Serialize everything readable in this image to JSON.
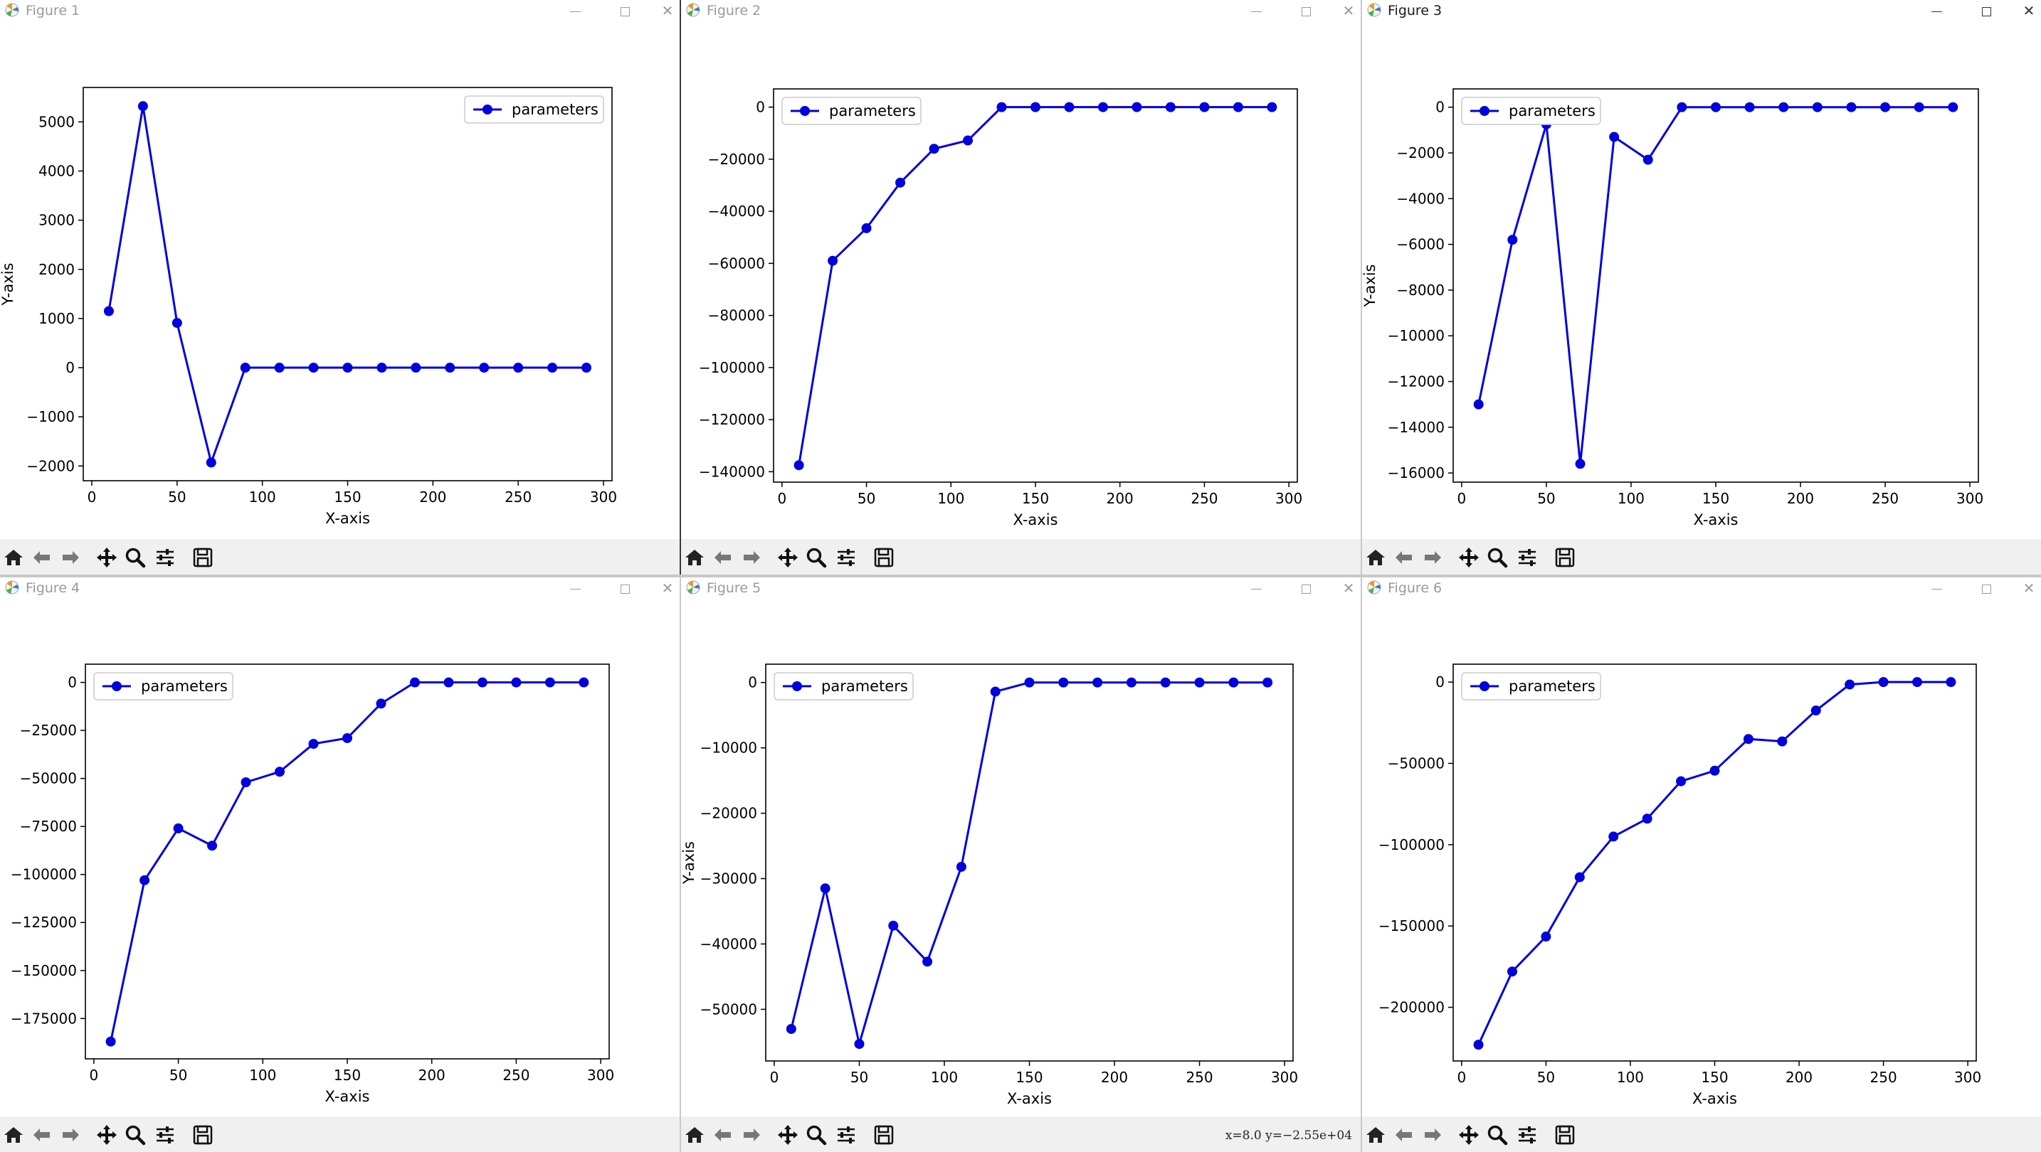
{
  "theme": {
    "line_color": "#0000dd",
    "active_title_color": "#1a1a1a",
    "inactive_title_color": "#9a9a9a",
    "toolbar_bg": "#f0f0f0"
  },
  "toolbar_buttons": [
    "home-icon",
    "back-icon",
    "forward-icon",
    "pan-icon",
    "zoom-icon",
    "configure-subplots-icon",
    "save-icon"
  ],
  "windows": [
    {
      "title": "Figure 1",
      "coord_text": "",
      "chart_data": {
        "type": "line",
        "xlabel": "X-axis",
        "ylabel": "Y-axis",
        "legend": "parameters",
        "legend_loc": "upper right",
        "xlim": [
          -5,
          305
        ],
        "ylim": [
          -2300,
          5700
        ],
        "xticks": [
          0,
          50,
          100,
          150,
          200,
          250,
          300
        ],
        "yticks": [
          -2000,
          -1000,
          0,
          1000,
          2000,
          3000,
          4000,
          5000
        ],
        "x": [
          10,
          30,
          50,
          70,
          90,
          110,
          130,
          150,
          170,
          190,
          210,
          230,
          250,
          270,
          290
        ],
        "y": [
          1150,
          5320,
          910,
          -1930,
          0,
          0,
          0,
          0,
          0,
          0,
          0,
          0,
          0,
          0,
          0
        ]
      }
    },
    {
      "title": "Figure 2",
      "coord_text": "",
      "chart_data": {
        "type": "line",
        "xlabel": "X-axis",
        "ylabel": "",
        "legend": "parameters",
        "legend_loc": "upper left",
        "xlim": [
          -5,
          305
        ],
        "ylim": [
          -144000,
          7000
        ],
        "xticks": [
          0,
          50,
          100,
          150,
          200,
          250,
          300
        ],
        "yticks": [
          -140000,
          -120000,
          -100000,
          -80000,
          -60000,
          -40000,
          -20000,
          0
        ],
        "x": [
          10,
          30,
          50,
          70,
          90,
          110,
          130,
          150,
          170,
          190,
          210,
          230,
          250,
          270,
          290
        ],
        "y": [
          -137500,
          -59000,
          -46500,
          -29000,
          -16000,
          -12800,
          0,
          0,
          0,
          0,
          0,
          0,
          0,
          0,
          0
        ]
      }
    },
    {
      "title": "Figure 3",
      "coord_text": "",
      "chart_data": {
        "type": "line",
        "xlabel": "X-axis",
        "ylabel": "Y-axis",
        "legend": "parameters",
        "legend_loc": "upper left",
        "xlim": [
          -5,
          305
        ],
        "ylim": [
          -16400,
          800
        ],
        "xticks": [
          0,
          50,
          100,
          150,
          200,
          250,
          300
        ],
        "yticks": [
          -16000,
          -14000,
          -12000,
          -10000,
          -8000,
          -6000,
          -4000,
          -2000,
          0
        ],
        "x": [
          10,
          30,
          50,
          70,
          90,
          110,
          130,
          150,
          170,
          190,
          210,
          230,
          250,
          270,
          290
        ],
        "y": [
          -13000,
          -5800,
          -750,
          -15600,
          -1300,
          -2300,
          0,
          0,
          0,
          0,
          0,
          0,
          0,
          0,
          0
        ]
      }
    },
    {
      "title": "Figure 4",
      "coord_text": "",
      "chart_data": {
        "type": "line",
        "xlabel": "X-axis",
        "ylabel": "",
        "legend": "parameters",
        "legend_loc": "upper left",
        "xlim": [
          -5,
          305
        ],
        "ylim": [
          -196000,
          9500
        ],
        "xticks": [
          0,
          50,
          100,
          150,
          200,
          250,
          300
        ],
        "yticks": [
          -175000,
          -150000,
          -125000,
          -100000,
          -75000,
          -50000,
          -25000,
          0
        ],
        "x": [
          10,
          30,
          50,
          70,
          90,
          110,
          130,
          150,
          170,
          190,
          210,
          230,
          250,
          270,
          290
        ],
        "y": [
          -187000,
          -103000,
          -76000,
          -85000,
          -52000,
          -46500,
          -32000,
          -29000,
          -11000,
          0,
          0,
          0,
          0,
          0,
          0
        ]
      }
    },
    {
      "title": "Figure 5",
      "coord_text": "x=8.0 y=−2.55e+04",
      "chart_data": {
        "type": "line",
        "xlabel": "X-axis",
        "ylabel": "Y-axis",
        "legend": "parameters",
        "legend_loc": "upper left",
        "xlim": [
          -5,
          305
        ],
        "ylim": [
          -57900,
          2800
        ],
        "xticks": [
          0,
          50,
          100,
          150,
          200,
          250,
          300
        ],
        "yticks": [
          -50000,
          -40000,
          -30000,
          -20000,
          -10000,
          0
        ],
        "x": [
          10,
          30,
          50,
          70,
          90,
          110,
          130,
          150,
          170,
          190,
          210,
          230,
          250,
          270,
          290
        ],
        "y": [
          -53000,
          -31500,
          -55300,
          -37200,
          -42700,
          -28200,
          -1400,
          0,
          0,
          0,
          0,
          0,
          0,
          0,
          0
        ]
      }
    },
    {
      "title": "Figure 6",
      "coord_text": "",
      "chart_data": {
        "type": "line",
        "xlabel": "X-axis",
        "ylabel": "",
        "legend": "parameters",
        "legend_loc": "upper left",
        "xlim": [
          -5,
          305
        ],
        "ylim": [
          -233000,
          11000
        ],
        "xticks": [
          0,
          50,
          100,
          150,
          200,
          250,
          300
        ],
        "yticks": [
          -200000,
          -150000,
          -100000,
          -50000,
          0
        ],
        "x": [
          10,
          30,
          50,
          70,
          90,
          110,
          130,
          150,
          170,
          190,
          210,
          230,
          250,
          270,
          290
        ],
        "y": [
          -223000,
          -178000,
          -156500,
          -120000,
          -95000,
          -84000,
          -61000,
          -54500,
          -35000,
          -36500,
          -17500,
          -1500,
          0,
          0,
          0
        ]
      }
    }
  ]
}
